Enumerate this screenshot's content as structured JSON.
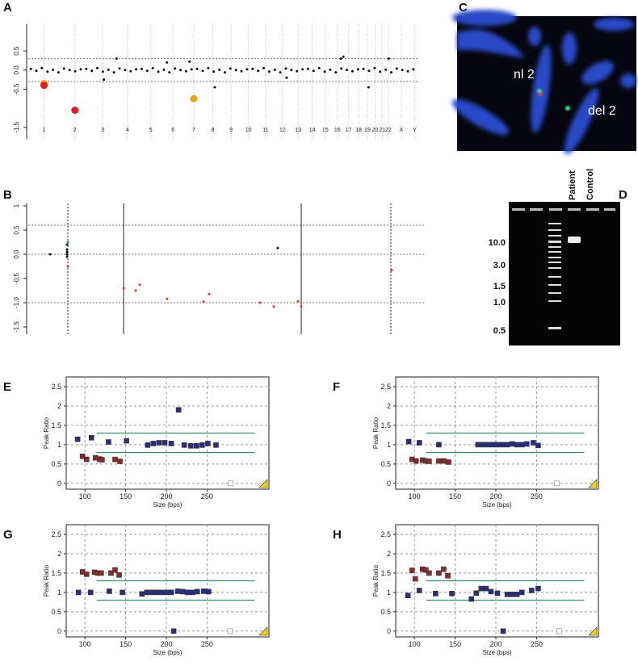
{
  "chart_data": [
    {
      "panel": "A",
      "type": "scatter",
      "marker": "circle",
      "xlim": [
        0,
        3095
      ],
      "ylim": [
        -1.8,
        1.2
      ],
      "xticks": [
        {
          "value": 125,
          "label": "1"
        },
        {
          "value": 370,
          "label": "2"
        },
        {
          "value": 591,
          "label": "3"
        },
        {
          "value": 786,
          "label": "4"
        },
        {
          "value": 972,
          "label": "5"
        },
        {
          "value": 1148,
          "label": "6"
        },
        {
          "value": 1313,
          "label": "7"
        },
        {
          "value": 1465,
          "label": "8"
        },
        {
          "value": 1609,
          "label": "9"
        },
        {
          "value": 1747,
          "label": "10"
        },
        {
          "value": 1883,
          "label": "11"
        },
        {
          "value": 2017,
          "label": "12"
        },
        {
          "value": 2142,
          "label": "13"
        },
        {
          "value": 2253,
          "label": "14"
        },
        {
          "value": 2357,
          "label": "15"
        },
        {
          "value": 2453,
          "label": "16"
        },
        {
          "value": 2540,
          "label": "17"
        },
        {
          "value": 2621,
          "label": "18"
        },
        {
          "value": 2691,
          "label": "19"
        },
        {
          "value": 2752,
          "label": "20"
        },
        {
          "value": 2808,
          "label": "21"
        },
        {
          "value": 2857,
          "label": "22"
        },
        {
          "value": 2960,
          "label": "X"
        },
        {
          "value": 3067,
          "label": "Y"
        }
      ],
      "yticks": [
        0.5,
        {
          "value": 0,
          "label": "0.0"
        },
        -0.5,
        -1.5
      ],
      "reference_lines": [
        0.3,
        -0.3
      ],
      "series": [
        {
          "color": "#111111",
          "x": [
            20,
            64,
            108,
            152,
            196,
            240,
            284,
            328,
            372,
            416,
            460,
            504,
            548,
            592,
            636,
            680,
            724,
            768,
            812,
            856,
            900,
            944,
            988,
            1032,
            1076,
            1120,
            1164,
            1208,
            1252,
            1296,
            1340,
            1384,
            1428,
            1472,
            1516,
            1560,
            1604,
            1648,
            1692,
            1736,
            1780,
            1824,
            1868,
            1912,
            1956,
            2000,
            2044,
            2088,
            2132,
            2176,
            2220,
            2264,
            2308,
            2352,
            2396,
            2440,
            2484,
            2528,
            2572,
            2616,
            2660,
            2704,
            2748,
            2792,
            2836,
            2880,
            2924,
            2968,
            3012,
            3056
          ],
          "values": [
            0.03,
            -0.02,
            0.05,
            -0.04,
            0.01,
            -0.06,
            0.04,
            0.0,
            -0.03,
            0.02,
            0.03,
            -0.02,
            0.05,
            -0.04,
            0.01,
            -0.06,
            0.04,
            0.0,
            -0.03,
            0.02,
            0.03,
            -0.02,
            0.05,
            -0.04,
            0.01,
            -0.06,
            0.04,
            0.0,
            -0.03,
            0.02,
            0.03,
            -0.02,
            0.05,
            -0.04,
            0.01,
            -0.06,
            0.04,
            0.0,
            -0.03,
            0.02,
            0.03,
            -0.02,
            0.05,
            -0.04,
            0.01,
            -0.06,
            0.04,
            0.0,
            -0.03,
            0.02,
            0.03,
            -0.02,
            0.05,
            -0.04,
            0.01,
            -0.06,
            0.04,
            0.0,
            -0.03,
            0.02,
            0.03,
            -0.02,
            0.05,
            -0.04,
            0.01,
            -0.06,
            0.04,
            0.0,
            -0.03,
            0.02
          ]
        },
        {
          "color": "#111111",
          "x": [
            600,
            700,
            1100,
            1280,
            1480,
            2050,
            2480,
            2500,
            2700,
            2860
          ],
          "values": [
            -0.25,
            0.3,
            0.2,
            0.22,
            -0.45,
            -0.2,
            0.3,
            0.35,
            -0.45,
            0.3
          ]
        },
        {
          "color": "#f0a020",
          "x": [
            125,
            1313
          ],
          "values": [
            -0.35,
            -0.75
          ]
        },
        {
          "color": "#e02020",
          "x": [
            125,
            370
          ],
          "values": [
            -0.4,
            -1.05
          ]
        }
      ]
    },
    {
      "panel": "B",
      "type": "scatter",
      "marker": "circle",
      "xlim": [
        0,
        490
      ],
      "ylim": [
        -1.65,
        1.05
      ],
      "yticks": [
        1,
        0.5,
        {
          "value": 0,
          "label": "0.0"
        },
        -0.5,
        {
          "value": -1,
          "label": "-1.0"
        },
        -1.5
      ],
      "reference_lines": [
        0.6,
        0,
        -1.0
      ],
      "solid_lines": [
        118,
        338
      ],
      "dashed_lines": [
        49,
        449
      ],
      "series": [
        {
          "color": "#111111",
          "x": [
            27,
            48,
            48,
            48,
            48,
            48,
            309
          ],
          "values": [
            0,
            0.2,
            0.1,
            0.05,
            0,
            -0.05,
            0.13
          ]
        },
        {
          "color": "#2a9a2a",
          "x": [
            49
          ],
          "values": [
            0.25
          ]
        },
        {
          "color": "#e03a1a",
          "x": [
            49,
            118,
            133,
            138,
            172,
            217,
            224,
            287,
            304,
            334,
            338,
            450
          ],
          "values": [
            -0.25,
            -0.7,
            -0.75,
            -0.63,
            -0.92,
            -0.98,
            -0.82,
            -1.0,
            -1.08,
            -0.97,
            -1.08,
            -0.33
          ]
        }
      ]
    },
    {
      "panel": "E",
      "type": "scatter",
      "marker": "square",
      "frame": true,
      "grid": true,
      "xlabel": "Size (bps)",
      "ylabel": "Peak Ratio",
      "xlim": [
        77,
        326
      ],
      "ylim": [
        -0.15,
        2.75
      ],
      "xticks": [
        100,
        150,
        200,
        250
      ],
      "yticks": [
        0,
        0.5,
        1,
        1.5,
        2,
        2.5
      ],
      "thresholds": [
        0.8,
        1.3
      ],
      "threshold_color": "#3a8a6a",
      "series": [
        {
          "color": "#2b2d7a",
          "x": [
            91,
            108,
            129,
            151,
            177,
            184,
            191,
            198,
            206,
            215,
            222,
            230,
            237,
            244,
            251,
            261
          ],
          "values": [
            1.14,
            1.18,
            1.07,
            1.1,
            0.99,
            1.03,
            1.05,
            1.05,
            1.03,
            1.9,
            0.99,
            0.97,
            0.97,
            0.99,
            1.03,
            0.99
          ]
        },
        {
          "color": "#8b2a2a",
          "x": [
            97,
            102,
            113,
            118,
            121,
            137,
            143
          ],
          "values": [
            0.7,
            0.62,
            0.66,
            0.63,
            0.61,
            0.62,
            0.57
          ]
        },
        {
          "color": "#888888",
          "open": true,
          "x": [
            279
          ],
          "values": [
            0
          ]
        }
      ]
    },
    {
      "panel": "F",
      "type": "scatter",
      "marker": "square",
      "frame": true,
      "grid": true,
      "xlabel": "Size (bps)",
      "ylabel": "Peak Ratio",
      "xlim": [
        77,
        326
      ],
      "ylim": [
        -0.15,
        2.75
      ],
      "xticks": [
        100,
        150,
        200,
        250
      ],
      "yticks": [
        0,
        0.5,
        1,
        1.5,
        2,
        2.5
      ],
      "thresholds": [
        0.8,
        1.3
      ],
      "threshold_color": "#3a8a6a",
      "series": [
        {
          "color": "#2b2d7a",
          "x": [
            93,
            106,
            130,
            178,
            184,
            190,
            196,
            202,
            208,
            214,
            220,
            226,
            232,
            238,
            246,
            252
          ],
          "values": [
            1.08,
            1.05,
            1.0,
            1.0,
            1.0,
            1.0,
            1.0,
            1.0,
            1.0,
            1.0,
            1.02,
            1.0,
            1.0,
            1.02,
            1.05,
            0.98
          ]
        },
        {
          "color": "#8b2a2a",
          "x": [
            97,
            102,
            110,
            114,
            118,
            130,
            136,
            142
          ],
          "values": [
            0.62,
            0.58,
            0.6,
            0.58,
            0.57,
            0.58,
            0.58,
            0.55
          ]
        },
        {
          "color": "#888888",
          "open": true,
          "x": [
            275
          ],
          "values": [
            0
          ]
        }
      ]
    },
    {
      "panel": "G",
      "type": "scatter",
      "marker": "square",
      "frame": true,
      "grid": true,
      "xlabel": "Size (bps)",
      "ylabel": "Peak Ratio",
      "xlim": [
        77,
        326
      ],
      "ylim": [
        -0.15,
        2.75
      ],
      "xticks": [
        100,
        150,
        200,
        250
      ],
      "yticks": [
        0,
        0.5,
        1,
        1.5,
        2,
        2.5
      ],
      "thresholds": [
        0.8,
        1.3
      ],
      "threshold_color": "#3a8a6a",
      "series": [
        {
          "color": "#2b2d7a",
          "x": [
            92,
            107,
            130,
            146,
            170,
            176,
            182,
            188,
            194,
            200,
            206,
            214,
            220,
            226,
            232,
            238,
            246,
            252,
            209
          ],
          "values": [
            1.0,
            1.0,
            1.03,
            1.0,
            0.96,
            1.0,
            1.0,
            1.0,
            1.0,
            1.0,
            1.0,
            1.03,
            1.02,
            1.0,
            1.0,
            1.02,
            1.03,
            1.02,
            0
          ]
        },
        {
          "color": "#8b2a2a",
          "x": [
            97,
            102,
            112,
            116,
            120,
            132,
            137,
            142
          ],
          "values": [
            1.53,
            1.47,
            1.52,
            1.5,
            1.5,
            1.5,
            1.58,
            1.45
          ]
        },
        {
          "color": "#888888",
          "open": true,
          "x": [
            278
          ],
          "values": [
            0
          ]
        }
      ]
    },
    {
      "panel": "H",
      "type": "scatter",
      "marker": "square",
      "frame": true,
      "grid": true,
      "xlabel": "Size (bps)",
      "ylabel": "Peak Ratio",
      "xlim": [
        77,
        326
      ],
      "ylim": [
        -0.15,
        2.75
      ],
      "xticks": [
        100,
        150,
        200,
        250
      ],
      "yticks": [
        0,
        0.5,
        1,
        1.5,
        2,
        2.5
      ],
      "thresholds": [
        0.8,
        1.3
      ],
      "threshold_color": "#3a8a6a",
      "series": [
        {
          "color": "#2b2d7a",
          "x": [
            92,
            106,
            126,
            146,
            170,
            176,
            182,
            188,
            194,
            202,
            214,
            220,
            226,
            232,
            244,
            252,
            209
          ],
          "values": [
            0.92,
            1.05,
            0.97,
            0.97,
            0.83,
            0.98,
            1.1,
            1.1,
            1.02,
            0.98,
            0.95,
            0.95,
            0.95,
            1.0,
            1.05,
            1.1,
            0
          ]
        },
        {
          "color": "#8b2a2a",
          "x": [
            97,
            101,
            110,
            114,
            118,
            130,
            136,
            141
          ],
          "values": [
            1.57,
            1.35,
            1.6,
            1.58,
            1.5,
            1.5,
            1.6,
            1.43
          ]
        },
        {
          "color": "#888888",
          "open": true,
          "x": [
            278
          ],
          "values": [
            0
          ]
        }
      ]
    }
  ],
  "fish": {
    "panel": "C",
    "labels": [
      "nl 2",
      "del 2"
    ]
  },
  "gel": {
    "panel": "D",
    "lanes": [
      "Patient",
      "Control"
    ],
    "ladder_labels": [
      "10.0",
      "3.0",
      "1.5",
      "1.0",
      "0.5"
    ]
  }
}
